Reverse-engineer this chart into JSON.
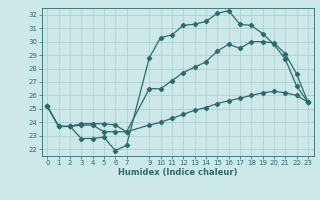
{
  "xlabel": "Humidex (Indice chaleur)",
  "background_color": "#cce8e8",
  "grid_color": "#aacccc",
  "line_color": "#2a6e6a",
  "xlim": [
    -0.5,
    23.5
  ],
  "ylim": [
    21.5,
    32.5
  ],
  "xticks": [
    0,
    1,
    2,
    3,
    4,
    5,
    6,
    7,
    9,
    10,
    11,
    12,
    13,
    14,
    15,
    16,
    17,
    18,
    19,
    20,
    21,
    22,
    23
  ],
  "yticks": [
    22,
    23,
    24,
    25,
    26,
    27,
    28,
    29,
    30,
    31,
    32
  ],
  "line1_x": [
    0,
    1,
    2,
    3,
    4,
    5,
    6,
    7,
    9,
    10,
    11,
    12,
    13,
    14,
    15,
    16,
    17,
    18,
    19,
    20,
    21,
    22,
    23
  ],
  "line1_y": [
    25.2,
    23.7,
    23.7,
    22.8,
    22.8,
    22.9,
    21.9,
    22.3,
    28.8,
    30.3,
    30.5,
    31.2,
    31.3,
    31.5,
    32.1,
    32.3,
    31.3,
    31.2,
    30.6,
    29.8,
    28.7,
    26.7,
    25.5
  ],
  "line2_x": [
    0,
    1,
    2,
    3,
    4,
    5,
    6,
    7,
    9,
    10,
    11,
    12,
    13,
    14,
    15,
    16,
    17,
    18,
    19,
    20,
    21,
    22,
    23
  ],
  "line2_y": [
    25.2,
    23.7,
    23.7,
    23.8,
    23.8,
    23.3,
    23.3,
    23.3,
    26.5,
    26.5,
    27.1,
    27.7,
    28.1,
    28.5,
    29.3,
    29.8,
    29.5,
    30.0,
    30.0,
    29.9,
    29.1,
    27.6,
    25.5
  ],
  "line3_x": [
    0,
    1,
    2,
    3,
    4,
    5,
    6,
    7,
    9,
    10,
    11,
    12,
    13,
    14,
    15,
    16,
    17,
    18,
    19,
    20,
    21,
    22,
    23
  ],
  "line3_y": [
    25.2,
    23.7,
    23.7,
    23.9,
    23.9,
    23.9,
    23.8,
    23.3,
    23.8,
    24.0,
    24.3,
    24.6,
    24.9,
    25.1,
    25.4,
    25.6,
    25.8,
    26.0,
    26.2,
    26.3,
    26.2,
    26.0,
    25.5
  ]
}
